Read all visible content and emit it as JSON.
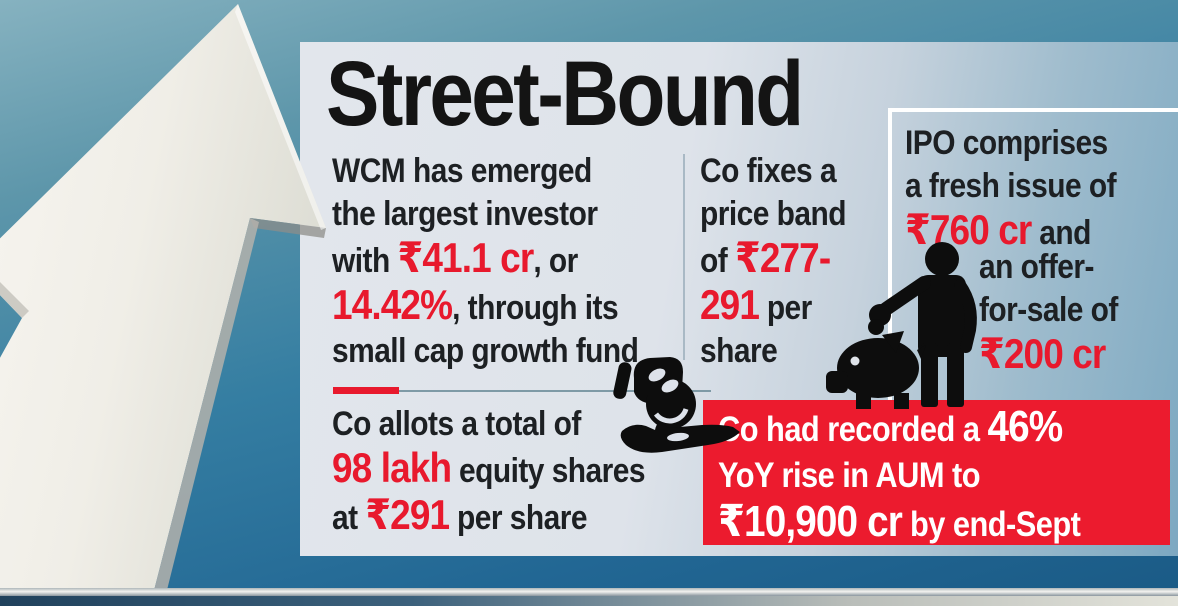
{
  "title": "Street-Bound",
  "colors": {
    "accent_red": "#e8192d",
    "banner_red": "#ec1b2e",
    "headline_color": "#141414",
    "body_text_color": "#1d2023",
    "panel_tint": "#dde2ea",
    "background_blue": "#2d7ba1",
    "banner_text_color": "#ffffff",
    "icon_black": "#0d0d0d"
  },
  "facts": {
    "investor": {
      "lines": [
        [
          {
            "t": "WCM has emerged"
          }
        ],
        [
          {
            "t": "the largest investor"
          }
        ],
        [
          {
            "t": "with "
          },
          {
            "t": "₹41.1 cr",
            "s": "em"
          },
          {
            "t": ", or"
          }
        ],
        [
          {
            "t": "14.42%",
            "s": "em"
          },
          {
            "t": ", through its"
          }
        ],
        [
          {
            "t": "small cap growth fund"
          }
        ]
      ]
    },
    "price_band": {
      "lines": [
        [
          {
            "t": "Co fixes a"
          }
        ],
        [
          {
            "t": "price band"
          }
        ],
        [
          {
            "t": "of "
          },
          {
            "t": "₹277-",
            "s": "em"
          }
        ],
        [
          {
            "t": "291",
            "s": "em"
          },
          {
            "t": " per"
          }
        ],
        [
          {
            "t": "share"
          }
        ]
      ]
    },
    "ipo_composition_top": {
      "lines": [
        [
          {
            "t": "IPO comprises"
          }
        ],
        [
          {
            "t": "a fresh issue of"
          }
        ],
        [
          {
            "t": "₹760 cr",
            "s": "em"
          },
          {
            "t": " and"
          }
        ]
      ]
    },
    "ipo_composition_bottom": {
      "lines": [
        [
          {
            "t": "an offer-"
          }
        ],
        [
          {
            "t": "for-sale of"
          }
        ],
        [
          {
            "t": "₹200 cr",
            "s": "em"
          }
        ]
      ]
    },
    "allotment": {
      "lines": [
        [
          {
            "t": "Co allots a total of"
          }
        ],
        [
          {
            "t": "98 lakh",
            "s": "em"
          },
          {
            "t": " equity shares"
          }
        ],
        [
          {
            "t": "at "
          },
          {
            "t": "₹291",
            "s": "em"
          },
          {
            "t": " per share"
          }
        ]
      ]
    },
    "aum_growth": {
      "lines": [
        [
          {
            "t": "Co had recorded a "
          },
          {
            "t": "46%",
            "s": "em"
          }
        ],
        [
          {
            "t": "YoY rise in AUM to"
          }
        ],
        [
          {
            "t": "₹10,900 cr",
            "s": "em"
          },
          {
            "t": " by end-Sept"
          }
        ]
      ]
    }
  },
  "icons": {
    "arrow_photo": "growth-arrow-sculpture",
    "hand_coin": "hand-receiving-coin-icon",
    "piggy": "person-saving-in-piggy-bank-icon"
  }
}
